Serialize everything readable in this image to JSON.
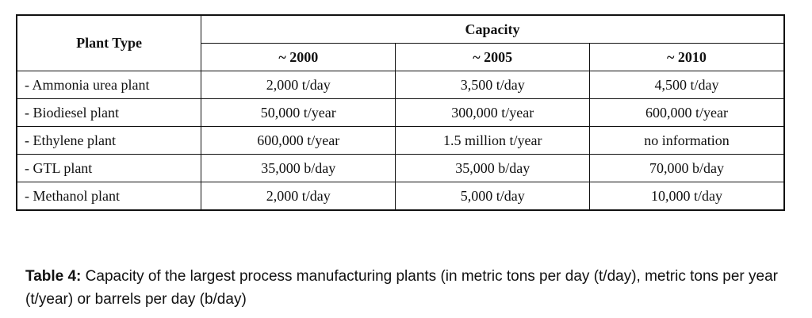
{
  "table": {
    "header": {
      "plant_type_label": "Plant Type",
      "capacity_label": "Capacity",
      "years": [
        "~ 2000",
        "~ 2005",
        "~ 2010"
      ]
    },
    "rows": [
      {
        "plant": "- Ammonia  urea plant",
        "values": [
          "2,000 t/day",
          "3,500 t/day",
          "4,500 t/day"
        ]
      },
      {
        "plant": "- Biodiesel plant",
        "values": [
          "50,000 t/year",
          "300,000 t/year",
          "600,000 t/year"
        ]
      },
      {
        "plant": "- Ethylene plant",
        "values": [
          "600,000 t/year",
          "1.5 million t/year",
          "no information"
        ]
      },
      {
        "plant": "- GTL plant",
        "values": [
          "35,000 b/day",
          "35,000 b/day",
          "70,000 b/day"
        ]
      },
      {
        "plant": "- Methanol plant",
        "values": [
          "2,000 t/day",
          "5,000 t/day",
          "10,000 t/day"
        ]
      }
    ]
  },
  "caption": {
    "label": "Table 4:",
    "text": " Capacity of the largest process manufacturing plants (in metric tons per day (t/day), metric tons per year (t/year) or barrels per day (b/day)"
  }
}
